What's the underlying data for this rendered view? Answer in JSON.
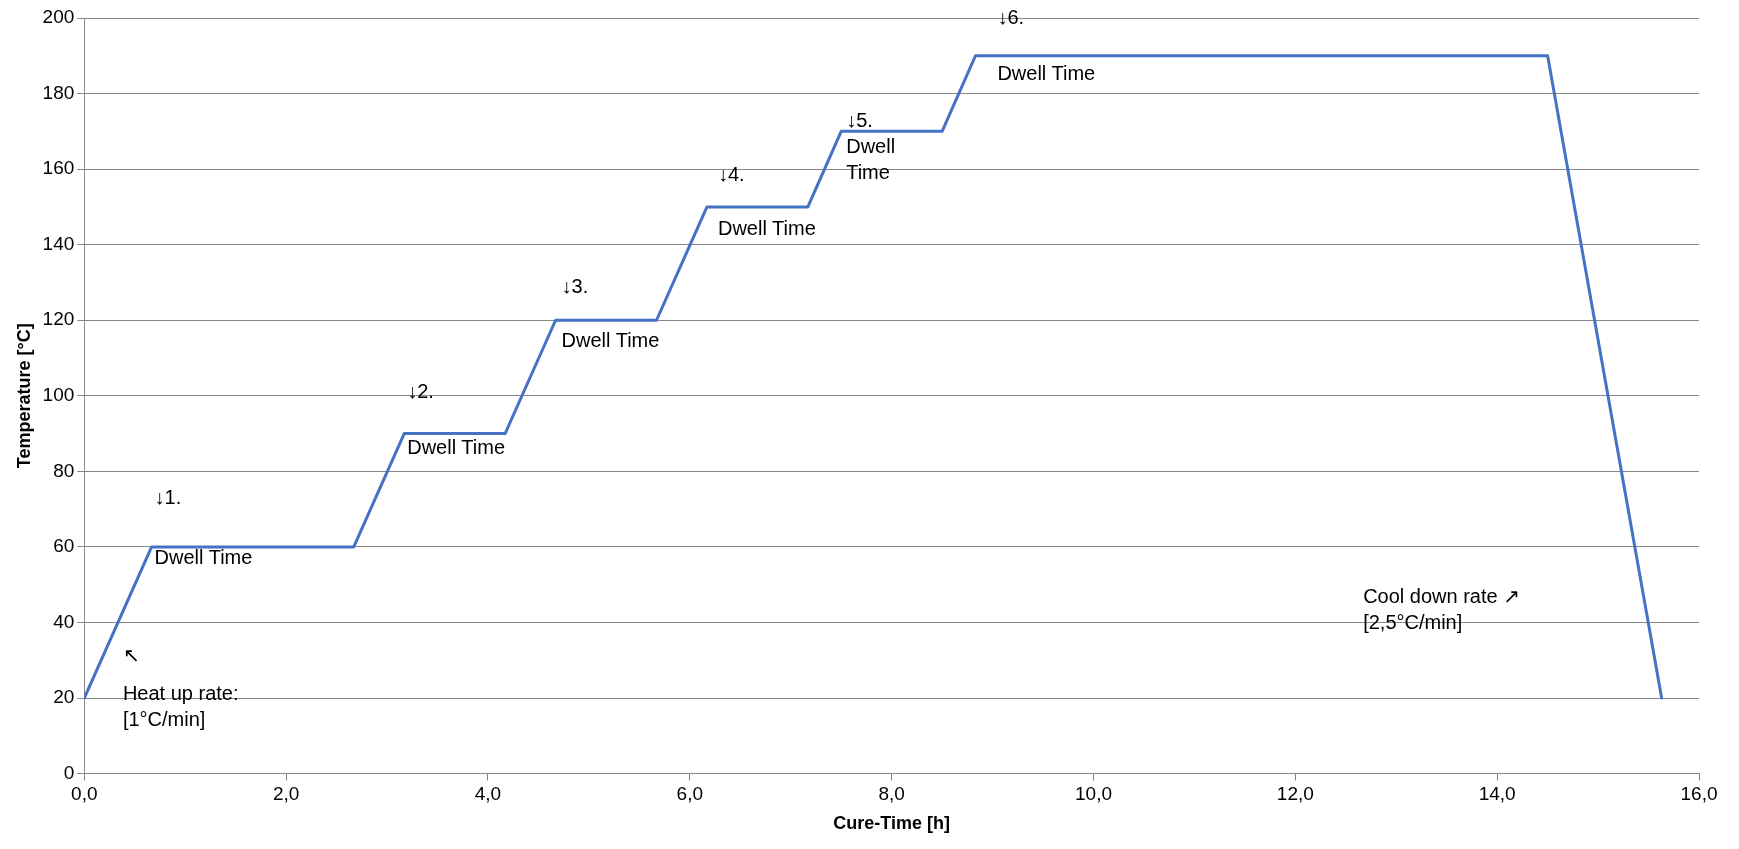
{
  "chart_data": {
    "type": "line",
    "xlabel": "Cure-Time [h]",
    "ylabel": "Temperature [°C]",
    "x": [
      0,
      0.667,
      2.67,
      3.17,
      4.17,
      4.67,
      5.67,
      6.17,
      7.17,
      7.5,
      8.5,
      8.83,
      14.5,
      15.63
    ],
    "series": [
      {
        "color": "#4472c4",
        "values": [
          20,
          60,
          60,
          90,
          90,
          120,
          120,
          150,
          150,
          170,
          170,
          190,
          190,
          20
        ]
      }
    ],
    "xlim": [
      0,
      16
    ],
    "xticks": [
      {
        "value": 0,
        "label": "0,0"
      },
      {
        "value": 2,
        "label": "2,0"
      },
      {
        "value": 4,
        "label": "4,0"
      },
      {
        "value": 6,
        "label": "6,0"
      },
      {
        "value": 8,
        "label": "8,0"
      },
      {
        "value": 10,
        "label": "10,0"
      },
      {
        "value": 12,
        "label": "12,0"
      },
      {
        "value": 14,
        "label": "14,0"
      },
      {
        "value": 16,
        "label": "16,0"
      }
    ],
    "ylim": [
      0,
      200
    ],
    "yticks": [
      0,
      20,
      40,
      60,
      80,
      100,
      120,
      140,
      160,
      180,
      200
    ],
    "grid": "y",
    "legend": false,
    "marker": "none",
    "line_style": "solid",
    "annotations": [
      {
        "text": "↓1.",
        "x": 0.667,
        "y": 60
      },
      {
        "text": "Dwell Time",
        "x": 0.667,
        "y": 60
      },
      {
        "text": "↓2.",
        "x": 3.17,
        "y": 90
      },
      {
        "text": "Dwell Time",
        "x": 3.17,
        "y": 90
      },
      {
        "text": "↓3.",
        "x": 4.67,
        "y": 120
      },
      {
        "text": "Dwell Time",
        "x": 4.67,
        "y": 120
      },
      {
        "text": "↓4.",
        "x": 6.17,
        "y": 150
      },
      {
        "text": "Dwell Time",
        "x": 6.17,
        "y": 150
      },
      {
        "text": "↓5.",
        "x": 7.5,
        "y": 170
      },
      {
        "text": "Dwell\nTime",
        "x": 7.5,
        "y": 170
      },
      {
        "text": "↓6.",
        "x": 8.83,
        "y": 190
      },
      {
        "text": "Dwell Time",
        "x": 8.83,
        "y": 190
      },
      {
        "text": "↖",
        "x": 0.333,
        "y": 40
      },
      {
        "text": "Heat up rate:\n[1°C/min]",
        "x": 0.333,
        "y": 40
      },
      "Cool down rate ↗\n[2,5°C/min]"
    ]
  }
}
